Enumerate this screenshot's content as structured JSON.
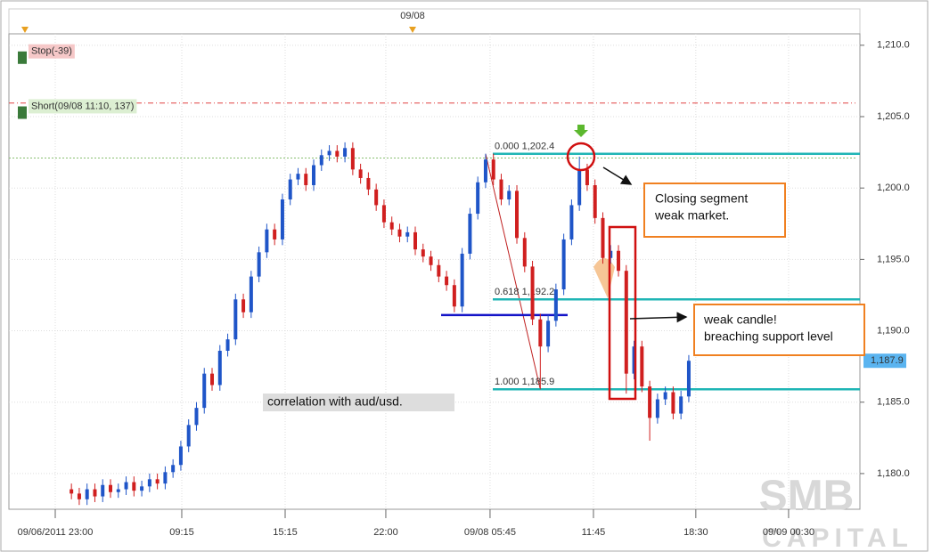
{
  "chart_data": {
    "type": "candlestick",
    "top_label": "09/08",
    "xlim": [
      -8,
      100.9
    ],
    "xticks": [
      {
        "value": -2.07,
        "label": "09/06/2011 23:00"
      },
      {
        "value": 14.12,
        "label": "09:15"
      },
      {
        "value": 27.35,
        "label": "15:15"
      },
      {
        "value": 40.23,
        "label": "22:00"
      },
      {
        "value": 53.57,
        "label": "09/08 05:45"
      },
      {
        "value": 66.8,
        "label": "11:45"
      },
      {
        "value": 79.9,
        "label": "18:30"
      },
      {
        "value": 91.77,
        "label": "09/09 00:30"
      }
    ],
    "ylim": [
      1177.5,
      1210.8
    ],
    "yticks": [
      {
        "value": 1180,
        "label": "1,180.0"
      },
      {
        "value": 1185,
        "label": "1,185.0"
      },
      {
        "value": 1190,
        "label": "1,190.0"
      },
      {
        "value": 1195,
        "label": "1,195.0"
      },
      {
        "value": 1200,
        "label": "1,200.0"
      },
      {
        "value": 1205,
        "label": "1,205.0"
      },
      {
        "value": 1210,
        "label": "1,210.0"
      }
    ],
    "grid": true,
    "up_color": "#1f55c8",
    "down_color": "#d01f1f",
    "open": [
      1178.9,
      1178.6,
      1178.2,
      1178.9,
      1178.4,
      1179.2,
      1178.7,
      1178.9,
      1179.4,
      1178.8,
      1179.1,
      1179.6,
      1179.3,
      1180.1,
      1180.6,
      1181.9,
      1183.4,
      1184.6,
      1187.0,
      1186.2,
      1188.6,
      1189.4,
      1192.2,
      1191.3,
      1193.8,
      1195.5,
      1197.1,
      1196.4,
      1199.2,
      1200.6,
      1201.0,
      1200.2,
      1201.6,
      1202.3,
      1202.6,
      1202.2,
      1202.8,
      1201.3,
      1200.7,
      1199.9,
      1198.8,
      1197.6,
      1197.1,
      1196.6,
      1196.9,
      1195.7,
      1195.2,
      1194.6,
      1193.8,
      1193.2,
      1191.7,
      1195.4,
      1198.2,
      1200.4,
      1202.0,
      1200.6,
      1199.2,
      1199.8,
      1196.5,
      1194.5,
      1190.8,
      1188.9,
      1190.7,
      1192.9,
      1196.4,
      1198.8,
      1201.3,
      1200.2,
      1197.9,
      1195.1,
      1195.6,
      1194.2,
      1187.0,
      1188.9,
      1186.1,
      1183.9,
      1185.2,
      1185.7,
      1184.2,
      1185.4
    ],
    "high": [
      1179.3,
      1179.0,
      1179.3,
      1179.3,
      1179.6,
      1179.6,
      1179.3,
      1179.8,
      1179.8,
      1179.5,
      1180.0,
      1180.0,
      1180.5,
      1181.0,
      1182.3,
      1183.8,
      1185.0,
      1187.4,
      1187.4,
      1189.0,
      1189.8,
      1192.6,
      1192.6,
      1194.2,
      1195.9,
      1197.5,
      1197.5,
      1199.6,
      1201.0,
      1201.4,
      1201.4,
      1202.0,
      1202.7,
      1203.0,
      1203.0,
      1203.2,
      1203.2,
      1201.7,
      1201.1,
      1200.3,
      1199.2,
      1198.0,
      1197.5,
      1197.3,
      1197.3,
      1196.1,
      1195.6,
      1195.0,
      1194.2,
      1193.6,
      1195.8,
      1198.6,
      1200.8,
      1202.4,
      1202.4,
      1201.0,
      1200.2,
      1200.2,
      1196.9,
      1194.9,
      1191.2,
      1191.1,
      1193.3,
      1196.8,
      1199.2,
      1202.2,
      1201.7,
      1200.6,
      1198.3,
      1196.0,
      1196.0,
      1194.6,
      1189.3,
      1189.3,
      1186.5,
      1185.6,
      1186.1,
      1186.1,
      1185.8,
      1188.3
    ],
    "low": [
      1178.2,
      1177.8,
      1177.8,
      1178.0,
      1178.0,
      1178.3,
      1178.3,
      1178.5,
      1178.4,
      1178.4,
      1178.7,
      1178.9,
      1178.9,
      1179.7,
      1180.2,
      1181.5,
      1183.0,
      1184.2,
      1185.8,
      1185.8,
      1188.2,
      1189.0,
      1190.9,
      1190.9,
      1193.4,
      1195.1,
      1196.0,
      1196.0,
      1198.8,
      1200.2,
      1199.8,
      1199.8,
      1201.2,
      1201.9,
      1201.8,
      1201.8,
      1200.9,
      1200.3,
      1199.5,
      1198.4,
      1197.2,
      1196.7,
      1196.2,
      1196.2,
      1195.3,
      1194.8,
      1194.2,
      1193.4,
      1192.8,
      1191.3,
      1191.3,
      1195.0,
      1197.8,
      1200.0,
      1200.2,
      1198.8,
      1198.8,
      1196.1,
      1194.1,
      1190.4,
      1185.9,
      1188.5,
      1190.3,
      1192.5,
      1196.0,
      1198.4,
      1199.8,
      1197.5,
      1194.7,
      1194.7,
      1193.8,
      1185.6,
      1186.6,
      1185.7,
      1182.3,
      1183.5,
      1184.8,
      1183.8,
      1183.8,
      1185.0
    ],
    "close": [
      1178.6,
      1178.2,
      1178.9,
      1178.4,
      1179.2,
      1178.7,
      1178.9,
      1179.4,
      1178.8,
      1179.1,
      1179.6,
      1179.3,
      1180.1,
      1180.6,
      1181.9,
      1183.4,
      1184.6,
      1187.0,
      1186.2,
      1188.6,
      1189.4,
      1192.2,
      1191.3,
      1193.8,
      1195.5,
      1197.1,
      1196.4,
      1199.2,
      1200.6,
      1201.0,
      1200.2,
      1201.6,
      1202.3,
      1202.6,
      1202.2,
      1202.8,
      1201.3,
      1200.7,
      1199.9,
      1198.8,
      1197.6,
      1197.1,
      1196.6,
      1196.9,
      1195.7,
      1195.2,
      1194.6,
      1193.8,
      1193.2,
      1191.7,
      1195.4,
      1198.2,
      1200.4,
      1202.0,
      1200.6,
      1199.2,
      1199.8,
      1196.5,
      1194.5,
      1190.8,
      1188.9,
      1190.7,
      1192.9,
      1196.4,
      1198.8,
      1201.3,
      1200.2,
      1197.9,
      1195.1,
      1195.6,
      1194.2,
      1187.0,
      1188.9,
      1186.1,
      1183.9,
      1185.2,
      1185.7,
      1184.2,
      1185.4,
      1187.9
    ],
    "fib_levels": [
      {
        "label": "0.000 1,202.4",
        "value": 1202.4
      },
      {
        "label": "0.618 1,192.2",
        "value": 1192.2
      },
      {
        "label": "1.000 1,185.9",
        "value": 1185.9
      }
    ],
    "fib_color": "#1fb5b5",
    "orders": [
      {
        "label": "Stop(-39)",
        "value": 1205.95,
        "color": "#e04040"
      },
      {
        "label": "Short(09/08 11:10, 137)",
        "value": 1202.1,
        "color": "#88c070"
      }
    ],
    "support": {
      "value": 1191.1,
      "color": "#1414c8"
    },
    "last_price": {
      "value": 1187.9,
      "label": "1,187.9"
    },
    "annotations": [
      {
        "lines": [
          "Closing segment",
          "weak market."
        ]
      },
      {
        "lines": [
          "weak candle!",
          "breaching support level"
        ]
      },
      {
        "lines": [
          "correlation with aud/usd."
        ]
      }
    ],
    "watermark": [
      "SMB",
      "CAPITAL"
    ]
  }
}
